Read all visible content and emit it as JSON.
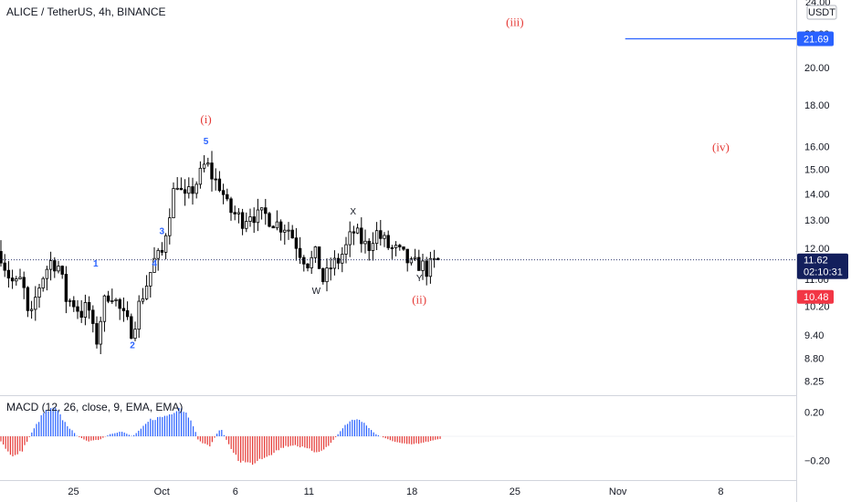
{
  "header": {
    "symbol_title": "ALICE / TetherUS, 4h, BINANCE"
  },
  "price_axis": {
    "currency": "USDT",
    "top_label": "24.00"
  },
  "indicator": {
    "legend": "MACD (12, 26, close, 9, EMA, EMA)"
  },
  "colors": {
    "candle": "#000000",
    "histogram_positive": "#2962ff",
    "histogram_negative": "#e53935",
    "wave_primary": "#e53935",
    "wave_minor": "#2962ff",
    "last_price_badge": "#131f5c",
    "horizontal_line": "#2962ff",
    "low_badge": "#f23645"
  },
  "chart_data": [
    {
      "type": "candlestick",
      "title": "ALICE / TetherUS, 4h, BINANCE",
      "x_axis": {
        "ticks": [
          "25",
          "Oct",
          "6",
          "11",
          "18",
          "25",
          "Nov",
          "8"
        ],
        "tick_dates": [
          "2021-09-25",
          "2021-10-01",
          "2021-10-06",
          "2021-10-11",
          "2021-10-18",
          "2021-10-25",
          "2021-11-01",
          "2021-11-08"
        ],
        "range": [
          "2021-09-20",
          "2021-11-13"
        ]
      },
      "y_axis": {
        "scale": "log",
        "ticks": [
          8.25,
          8.8,
          9.4,
          10.2,
          11.0,
          12.0,
          13.0,
          14.0,
          15.0,
          16.0,
          18.0,
          20.0,
          22.0
        ],
        "tick_labels": [
          "8.25",
          "8.80",
          "9.40",
          "10.20",
          "11.00",
          "12.00",
          "13.00",
          "14.00",
          "15.00",
          "16.00",
          "18.00",
          "20.00",
          "22.00"
        ],
        "range": [
          7.95,
          24.2
        ]
      },
      "grid": false,
      "price_path": [
        [
          "2021-09-20T00:00",
          11.9
        ],
        [
          "2021-09-20T12:00",
          11.2
        ],
        [
          "2021-09-21T00:00",
          10.8
        ],
        [
          "2021-09-21T12:00",
          11.0
        ],
        [
          "2021-09-22T00:00",
          9.6
        ],
        [
          "2021-09-22T12:00",
          10.6
        ],
        [
          "2021-09-23T00:00",
          11.2
        ],
        [
          "2021-09-23T12:00",
          11.6
        ],
        [
          "2021-09-24T00:00",
          11.4
        ],
        [
          "2021-09-24T12:00",
          10.4
        ],
        [
          "2021-09-25T00:00",
          10.3
        ],
        [
          "2021-09-25T12:00",
          10.0
        ],
        [
          "2021-09-26T00:00",
          10.2
        ],
        [
          "2021-09-26T12:00",
          9.1
        ],
        [
          "2021-09-27T00:00",
          10.2
        ],
        [
          "2021-09-27T12:00",
          10.7
        ],
        [
          "2021-09-28T00:00",
          10.2
        ],
        [
          "2021-09-28T12:00",
          9.8
        ],
        [
          "2021-09-29T00:00",
          9.5
        ],
        [
          "2021-09-29T12:00",
          10.3
        ],
        [
          "2021-09-30T00:00",
          10.9
        ],
        [
          "2021-09-30T12:00",
          11.6
        ],
        [
          "2021-10-01T00:00",
          11.8
        ],
        [
          "2021-10-01T12:00",
          13.3
        ],
        [
          "2021-10-02T00:00",
          14.6
        ],
        [
          "2021-10-02T12:00",
          13.7
        ],
        [
          "2021-10-03T00:00",
          14.1
        ],
        [
          "2021-10-03T12:00",
          14.6
        ],
        [
          "2021-10-04T00:00",
          15.3
        ],
        [
          "2021-10-04T12:00",
          14.6
        ],
        [
          "2021-10-05T00:00",
          14.3
        ],
        [
          "2021-10-05T12:00",
          13.4
        ],
        [
          "2021-10-06T00:00",
          13.2
        ],
        [
          "2021-10-06T12:00",
          13.0
        ],
        [
          "2021-10-07T00:00",
          13.3
        ],
        [
          "2021-10-07T12:00",
          13.1
        ],
        [
          "2021-10-08T00:00",
          13.2
        ],
        [
          "2021-10-08T12:00",
          13.0
        ],
        [
          "2021-10-09T00:00",
          12.8
        ],
        [
          "2021-10-09T12:00",
          12.8
        ],
        [
          "2021-10-10T00:00",
          12.3
        ],
        [
          "2021-10-10T12:00",
          11.8
        ],
        [
          "2021-10-11T00:00",
          11.5
        ],
        [
          "2021-10-11T12:00",
          11.8
        ],
        [
          "2021-10-12T00:00",
          10.9
        ],
        [
          "2021-10-12T12:00",
          11.4
        ],
        [
          "2021-10-13T00:00",
          11.6
        ],
        [
          "2021-10-13T12:00",
          12.0
        ],
        [
          "2021-10-14T00:00",
          12.6
        ],
        [
          "2021-10-14T12:00",
          12.3
        ],
        [
          "2021-10-15T00:00",
          12.0
        ],
        [
          "2021-10-15T12:00",
          12.6
        ],
        [
          "2021-10-16T00:00",
          12.3
        ],
        [
          "2021-10-16T12:00",
          12.0
        ],
        [
          "2021-10-17T00:00",
          11.9
        ],
        [
          "2021-10-17T12:00",
          11.7
        ],
        [
          "2021-10-18T00:00",
          11.4
        ],
        [
          "2021-10-18T12:00",
          11.5
        ],
        [
          "2021-10-19T00:00",
          11.3
        ],
        [
          "2021-10-19T12:00",
          11.5
        ],
        [
          "2021-10-20T00:00",
          11.62
        ]
      ],
      "current_price": 11.62,
      "countdown": "02:10:31",
      "horizontal_line": {
        "value": 21.69,
        "from": "2021-11-01T12:00"
      },
      "low_marker": 10.48,
      "wave_labels": [
        {
          "text": "(i)",
          "x": "2021-10-04T00:00",
          "y": 17.1,
          "style": "primary"
        },
        {
          "text": "(ii)",
          "x": "2021-10-18T12:00",
          "y": 10.28,
          "style": "primary"
        },
        {
          "text": "(iii)",
          "x": "2021-10-25T00:00",
          "y": 22.5,
          "style": "primary"
        },
        {
          "text": "(iv)",
          "x": "2021-11-08T00:00",
          "y": 15.8,
          "style": "primary"
        },
        {
          "text": "1",
          "x": "2021-09-26T12:00",
          "y": 11.4,
          "style": "minor"
        },
        {
          "text": "2",
          "x": "2021-09-29T00:00",
          "y": 9.05,
          "style": "minor"
        },
        {
          "text": "3",
          "x": "2021-10-01T00:00",
          "y": 12.5,
          "style": "minor"
        },
        {
          "text": "4",
          "x": "2021-09-30T12:00",
          "y": 11.4,
          "style": "minor"
        },
        {
          "text": "5",
          "x": "2021-10-04T00:00",
          "y": 16.1,
          "style": "minor"
        },
        {
          "text": "W",
          "x": "2021-10-11T12:00",
          "y": 10.55,
          "style": "neutral"
        },
        {
          "text": "X",
          "x": "2021-10-14T00:00",
          "y": 13.2,
          "style": "neutral"
        },
        {
          "text": "Y",
          "x": "2021-10-18T12:00",
          "y": 10.95,
          "style": "neutral"
        }
      ]
    },
    {
      "type": "bar",
      "title": "MACD (12, 26, close, 9, EMA, EMA)",
      "y_axis": {
        "ticks": [
          0.2,
          -0.2
        ],
        "tick_labels": [
          "0.20",
          "−0.20"
        ],
        "range": [
          -0.34,
          0.31
        ]
      },
      "histogram_path": [
        [
          "2021-09-20T00:00",
          -0.03
        ],
        [
          "2021-09-20T18:00",
          -0.17
        ],
        [
          "2021-09-21T12:00",
          -0.12
        ],
        [
          "2021-09-22T06:00",
          0.05
        ],
        [
          "2021-09-23T00:00",
          0.2
        ],
        [
          "2021-09-23T18:00",
          0.23
        ],
        [
          "2021-09-24T12:00",
          0.1
        ],
        [
          "2021-09-25T06:00",
          0.0
        ],
        [
          "2021-09-26T00:00",
          -0.04
        ],
        [
          "2021-09-26T18:00",
          -0.03
        ],
        [
          "2021-09-27T12:00",
          0.02
        ],
        [
          "2021-09-28T06:00",
          0.04
        ],
        [
          "2021-09-29T00:00",
          0.0
        ],
        [
          "2021-09-29T12:00",
          0.05
        ],
        [
          "2021-09-30T06:00",
          0.14
        ],
        [
          "2021-10-01T00:00",
          0.16
        ],
        [
          "2021-10-01T12:00",
          0.18
        ],
        [
          "2021-10-02T06:00",
          0.25
        ],
        [
          "2021-10-03T00:00",
          0.14
        ],
        [
          "2021-10-03T12:00",
          -0.04
        ],
        [
          "2021-10-04T06:00",
          -0.08
        ],
        [
          "2021-10-05T00:00",
          0.07
        ],
        [
          "2021-10-05T12:00",
          -0.06
        ],
        [
          "2021-10-06T06:00",
          -0.2
        ],
        [
          "2021-10-07T00:00",
          -0.23
        ],
        [
          "2021-10-07T18:00",
          -0.18
        ],
        [
          "2021-10-08T12:00",
          -0.14
        ],
        [
          "2021-10-09T06:00",
          -0.09
        ],
        [
          "2021-10-10T00:00",
          -0.07
        ],
        [
          "2021-10-10T18:00",
          -0.1
        ],
        [
          "2021-10-11T12:00",
          -0.13
        ],
        [
          "2021-10-12T06:00",
          -0.09
        ],
        [
          "2021-10-13T00:00",
          0.02
        ],
        [
          "2021-10-13T12:00",
          0.1
        ],
        [
          "2021-10-14T06:00",
          0.15
        ],
        [
          "2021-10-15T00:00",
          0.08
        ],
        [
          "2021-10-15T12:00",
          0.02
        ],
        [
          "2021-10-16T06:00",
          -0.02
        ],
        [
          "2021-10-17T00:00",
          -0.05
        ],
        [
          "2021-10-17T18:00",
          -0.07
        ],
        [
          "2021-10-18T12:00",
          -0.06
        ],
        [
          "2021-10-19T06:00",
          -0.04
        ],
        [
          "2021-10-20T00:00",
          -0.02
        ]
      ]
    }
  ]
}
